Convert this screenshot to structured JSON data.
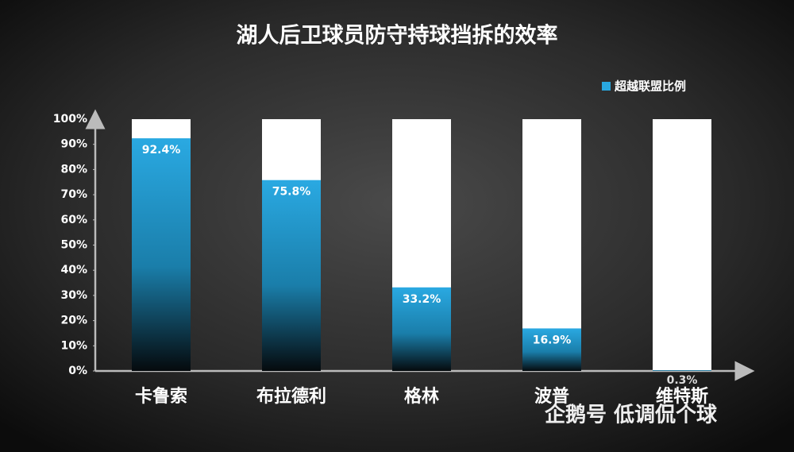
{
  "chart_data": {
    "type": "bar",
    "title": "湖人后卫球员防守持球挡拆的效率",
    "categories": [
      "卡鲁索",
      "布拉德利",
      "格林",
      "波普",
      "维特斯"
    ],
    "series": [
      {
        "name": "超越联盟比例",
        "color": "#29a8e0",
        "values": [
          92.4,
          75.8,
          33.2,
          16.9,
          0.3
        ],
        "value_labels": [
          "92.4%",
          "75.8%",
          "33.2%",
          "16.9%",
          "0.3%"
        ]
      }
    ],
    "ylim": [
      0,
      100
    ],
    "yticks": [
      {
        "value": 0,
        "label": "0%"
      },
      {
        "value": 10,
        "label": "10%"
      },
      {
        "value": 20,
        "label": "20%"
      },
      {
        "value": 30,
        "label": "30%"
      },
      {
        "value": 40,
        "label": "40%"
      },
      {
        "value": 50,
        "label": "50%"
      },
      {
        "value": 60,
        "label": "60%"
      },
      {
        "value": 70,
        "label": "70%"
      },
      {
        "value": 80,
        "label": "80%"
      },
      {
        "value": 90,
        "label": "90%"
      },
      {
        "value": 100,
        "label": "100%"
      }
    ],
    "legend": "top-right",
    "watermark": "企鹅号 低调侃个球"
  }
}
